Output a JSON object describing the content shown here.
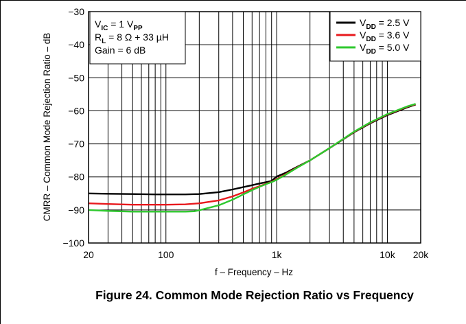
{
  "chart_data": {
    "type": "line",
    "title": "Figure 24. Common Mode Rejection Ratio vs Frequency",
    "xlabel": "f – Frequency – Hz",
    "ylabel": "CMRR – Common Mode Rejection Ratio – dB",
    "xscale": "log",
    "xlim": [
      20,
      20000
    ],
    "ylim": [
      -100,
      -30
    ],
    "grid": true,
    "legend_position": "top-right",
    "x_ticks": [
      {
        "value": 20,
        "label": "20"
      },
      {
        "value": 100,
        "label": "100"
      },
      {
        "value": 1000,
        "label": "1k"
      },
      {
        "value": 10000,
        "label": "10k"
      },
      {
        "value": 20000,
        "label": "20k"
      }
    ],
    "y_ticks": [
      {
        "value": -30,
        "label": "−30"
      },
      {
        "value": -40,
        "label": "−40"
      },
      {
        "value": -50,
        "label": "−50"
      },
      {
        "value": -60,
        "label": "−60"
      },
      {
        "value": -70,
        "label": "−70"
      },
      {
        "value": -80,
        "label": "−80"
      },
      {
        "value": -90,
        "label": "−90"
      },
      {
        "value": -100,
        "label": "−100"
      }
    ],
    "conditions": [
      {
        "main": "V",
        "sub": "IC",
        "rest": " = 1 V",
        "sub2": "PP"
      },
      {
        "main": "R",
        "sub": "L",
        "rest": " = 8 Ω + 33 µH",
        "sub2": ""
      },
      {
        "main": "Gain = 6 dB",
        "sub": "",
        "rest": "",
        "sub2": ""
      }
    ],
    "series": [
      {
        "name": "V",
        "name_sub": "DD",
        "name_rest": " = 2.5 V",
        "color": "#000000",
        "x": [
          20,
          30,
          50,
          80,
          100,
          150,
          200,
          300,
          400,
          500,
          600,
          700,
          800,
          900,
          1000,
          1200,
          1500,
          2000,
          3000,
          5000,
          7000,
          10000,
          15000,
          18000
        ],
        "y": [
          -85,
          -85.1,
          -85.2,
          -85.3,
          -85.3,
          -85.3,
          -85.2,
          -84.6,
          -83.8,
          -83.1,
          -82.5,
          -82.0,
          -81.6,
          -81.2,
          -79.9,
          -78.8,
          -77.1,
          -75.0,
          -71.3,
          -66.5,
          -63.8,
          -61.3,
          -59.0,
          -58.1
        ]
      },
      {
        "name": "V",
        "name_sub": "DD",
        "name_rest": " = 3.6 V",
        "color": "#e8191d",
        "x": [
          20,
          30,
          50,
          80,
          100,
          150,
          200,
          300,
          400,
          500,
          600,
          700,
          800,
          900,
          1000,
          1200,
          1500,
          2000,
          3000,
          5000,
          7000,
          10000,
          15000,
          18000
        ],
        "y": [
          -88,
          -88.2,
          -88.4,
          -88.4,
          -88.4,
          -88.3,
          -88.0,
          -87.1,
          -85.9,
          -84.7,
          -83.6,
          -82.8,
          -82.1,
          -81.5,
          -80.7,
          -79.2,
          -77.3,
          -75.0,
          -71.3,
          -66.4,
          -63.6,
          -61.1,
          -58.8,
          -58.0
        ]
      },
      {
        "name": "V",
        "name_sub": "DD",
        "name_rest": " = 5.0 V",
        "color": "#2ec82e",
        "x": [
          20,
          30,
          50,
          80,
          100,
          150,
          180,
          200,
          300,
          400,
          500,
          600,
          700,
          800,
          900,
          1000,
          1200,
          1500,
          2000,
          3000,
          5000,
          7000,
          10000,
          15000,
          18000
        ],
        "y": [
          -90,
          -90.3,
          -90.5,
          -90.5,
          -90.5,
          -90.5,
          -90.4,
          -90.1,
          -88.6,
          -86.9,
          -85.3,
          -84.0,
          -83.0,
          -82.2,
          -81.6,
          -80.9,
          -79.4,
          -77.4,
          -75.0,
          -71.3,
          -66.3,
          -63.5,
          -61.0,
          -58.7,
          -57.9
        ]
      }
    ]
  }
}
